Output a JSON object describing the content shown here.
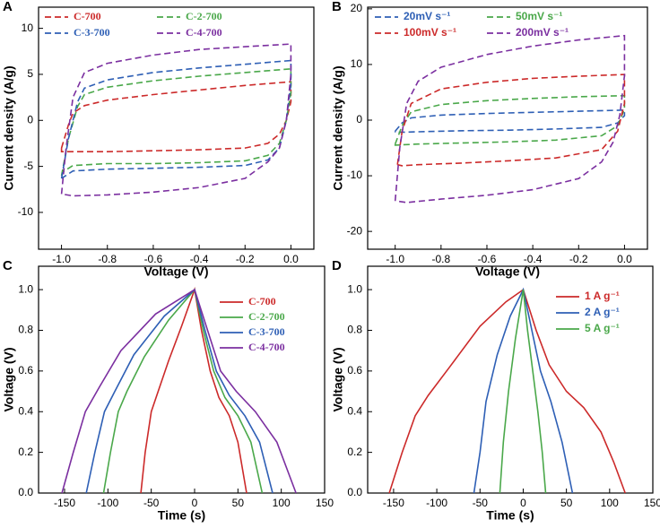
{
  "chart_data": [
    {
      "type": "line",
      "label": "A",
      "xlabel": "Voltage (V)",
      "ylabel": "Current density (A/g)",
      "linestyle": "dashed",
      "xlim": [
        -1.1,
        0.1
      ],
      "ylim": [
        -14,
        12.3
      ],
      "xticks": [
        {
          "value": -1,
          "label": "-1.0"
        },
        -0.8,
        -0.6,
        -0.4,
        -0.2,
        {
          "value": 0,
          "label": "0.0"
        }
      ],
      "yticks": [
        -10,
        -5,
        0,
        5,
        10
      ],
      "series": [
        {
          "name": "C-700",
          "color": "#cc2a2a",
          "x": [
            -1.0,
            -0.97,
            -0.95,
            -0.9,
            -0.8,
            -0.6,
            -0.4,
            -0.2,
            0.0,
            0.0,
            -0.02,
            -0.05,
            -0.1,
            -0.2,
            -0.4,
            -0.6,
            -0.8,
            -1.0,
            -1.0
          ],
          "values": [
            -3,
            -0.5,
            0.8,
            1.6,
            2.2,
            2.8,
            3.3,
            3.8,
            4.2,
            2,
            0,
            -1.5,
            -2.5,
            -3,
            -3.2,
            -3.3,
            -3.4,
            -3.4,
            -3
          ]
        },
        {
          "name": "C-2-700",
          "color": "#4aa84a",
          "x": [
            -1.0,
            -0.97,
            -0.93,
            -0.9,
            -0.8,
            -0.6,
            -0.4,
            -0.2,
            0.0,
            0.0,
            -0.02,
            -0.05,
            -0.1,
            -0.2,
            -0.4,
            -0.6,
            -0.8,
            -0.95,
            -1.0
          ],
          "values": [
            -6,
            -2,
            1.5,
            2.8,
            3.6,
            4.3,
            4.8,
            5.2,
            5.6,
            3,
            0,
            -2.5,
            -3.8,
            -4.4,
            -4.6,
            -4.7,
            -4.7,
            -4.9,
            -5.7
          ]
        },
        {
          "name": "C-3-700",
          "color": "#2e5fb5",
          "x": [
            -1.0,
            -0.97,
            -0.93,
            -0.9,
            -0.8,
            -0.6,
            -0.4,
            -0.2,
            0.0,
            0.0,
            -0.02,
            -0.05,
            -0.1,
            -0.2,
            -0.4,
            -0.6,
            -0.8,
            -0.95,
            -1.0
          ],
          "values": [
            -6.3,
            -2,
            2,
            3.5,
            4.4,
            5.2,
            5.7,
            6.1,
            6.5,
            4,
            0,
            -3,
            -4.3,
            -4.9,
            -5.1,
            -5.2,
            -5.3,
            -5.5,
            -6.3
          ]
        },
        {
          "name": "C-4-700",
          "color": "#7b2fa0",
          "x": [
            -1.0,
            -0.98,
            -0.95,
            -0.9,
            -0.8,
            -0.6,
            -0.4,
            -0.2,
            0.0,
            0.0,
            -0.02,
            -0.05,
            -0.1,
            -0.2,
            -0.4,
            -0.6,
            -0.8,
            -0.95,
            -1.0
          ],
          "values": [
            -8,
            -3,
            2.5,
            5.2,
            6.2,
            7.1,
            7.7,
            8.0,
            8.3,
            5,
            0,
            -3,
            -4.5,
            -6.3,
            -7.3,
            -7.8,
            -8.1,
            -8.2,
            -8
          ]
        }
      ]
    },
    {
      "type": "line",
      "label": "B",
      "xlabel": "Voltage (V)",
      "ylabel": "Current density (A/g)",
      "linestyle": "dashed",
      "xlim": [
        -1.12,
        0.1
      ],
      "ylim": [
        -23.2,
        20.3
      ],
      "xticks": [
        {
          "value": -1,
          "label": "-1.0"
        },
        -0.8,
        -0.6,
        -0.4,
        -0.2,
        {
          "value": 0,
          "label": "0.0"
        }
      ],
      "yticks": [
        -20,
        -10,
        0,
        10,
        20
      ],
      "series": [
        {
          "name": "20mV s⁻¹",
          "color": "#2e5fb5",
          "x": [
            -1.0,
            -0.97,
            -0.93,
            -0.8,
            -0.6,
            -0.4,
            -0.2,
            0.0,
            0.0,
            -0.03,
            -0.1,
            -0.3,
            -0.5,
            -0.7,
            -0.9,
            -1.0,
            -1.0
          ],
          "values": [
            -2,
            -0.5,
            0.4,
            0.9,
            1.2,
            1.4,
            1.6,
            1.8,
            0.8,
            -0.5,
            -1.3,
            -1.6,
            -1.8,
            -1.9,
            -2.1,
            -2.2,
            -2
          ]
        },
        {
          "name": "50mV s⁻¹",
          "color": "#4aa84a",
          "x": [
            -1.0,
            -0.97,
            -0.93,
            -0.8,
            -0.6,
            -0.4,
            -0.2,
            0.0,
            0.0,
            -0.03,
            -0.1,
            -0.3,
            -0.5,
            -0.7,
            -0.9,
            -1.0,
            -1.0
          ],
          "values": [
            -4.3,
            -1,
            1.5,
            2.8,
            3.5,
            3.9,
            4.2,
            4.4,
            2,
            -1,
            -2.8,
            -3.6,
            -3.9,
            -4.1,
            -4.3,
            -4.5,
            -4.3
          ]
        },
        {
          "name": "100mV s⁻¹",
          "color": "#cc2a2a",
          "x": [
            -0.99,
            -0.97,
            -0.93,
            -0.8,
            -0.6,
            -0.4,
            -0.2,
            0.0,
            0.0,
            -0.03,
            -0.1,
            -0.3,
            -0.5,
            -0.7,
            -0.9,
            -0.97,
            -0.99
          ],
          "values": [
            -8,
            -2,
            3,
            5.6,
            6.8,
            7.5,
            7.9,
            8.2,
            3,
            -2,
            -5.3,
            -6.8,
            -7.3,
            -7.7,
            -8,
            -8.2,
            -8
          ]
        },
        {
          "name": "200mV s⁻¹",
          "color": "#7b2fa0",
          "x": [
            -1.0,
            -0.98,
            -0.95,
            -0.9,
            -0.8,
            -0.6,
            -0.4,
            -0.2,
            0.0,
            0.0,
            -0.02,
            -0.05,
            -0.1,
            -0.2,
            -0.4,
            -0.6,
            -0.8,
            -0.95,
            -1.0
          ],
          "values": [
            -14.5,
            -5,
            3,
            7,
            9.5,
            11.8,
            13.3,
            14.4,
            15.2,
            8,
            1,
            -4,
            -7.5,
            -10.5,
            -12.5,
            -13.5,
            -14.2,
            -14.8,
            -14.5
          ]
        }
      ]
    },
    {
      "type": "line",
      "label": "C",
      "xlabel": "Time (s)",
      "ylabel": "Voltage (V)",
      "linestyle": "solid",
      "xlim": [
        -180,
        150
      ],
      "ylim": [
        0,
        1.115
      ],
      "xticks": [
        -150,
        -100,
        -50,
        0,
        50,
        100,
        150
      ],
      "yticks": [
        {
          "value": 0,
          "label": "0.0"
        },
        0.2,
        0.4,
        0.6,
        0.8,
        {
          "value": 1,
          "label": "1.0"
        }
      ],
      "series": [
        {
          "name": "C-700",
          "color": "#cc2a2a",
          "x": [
            -62,
            -57,
            -50,
            -42,
            -30,
            -15,
            0,
            8,
            18,
            28,
            40,
            50,
            60
          ],
          "values": [
            0,
            0.2,
            0.4,
            0.5,
            0.65,
            0.82,
            1.0,
            0.8,
            0.6,
            0.47,
            0.38,
            0.25,
            0
          ]
        },
        {
          "name": "C-2-700",
          "color": "#4aa84a",
          "x": [
            -105,
            -97,
            -88,
            -78,
            -58,
            -30,
            0,
            10,
            22,
            35,
            50,
            65,
            78
          ],
          "values": [
            0,
            0.2,
            0.4,
            0.5,
            0.67,
            0.85,
            1.0,
            0.8,
            0.6,
            0.47,
            0.38,
            0.25,
            0
          ]
        },
        {
          "name": "C-3-700",
          "color": "#2e5fb5",
          "x": [
            -125,
            -115,
            -104,
            -92,
            -70,
            -35,
            0,
            12,
            25,
            40,
            58,
            75,
            90
          ],
          "values": [
            0,
            0.2,
            0.4,
            0.5,
            0.68,
            0.87,
            1.0,
            0.8,
            0.6,
            0.48,
            0.38,
            0.25,
            0
          ]
        },
        {
          "name": "C-4-700",
          "color": "#7b2fa0",
          "x": [
            -153,
            -140,
            -126,
            -110,
            -85,
            -45,
            0,
            15,
            30,
            48,
            70,
            95,
            117
          ],
          "values": [
            0,
            0.2,
            0.4,
            0.52,
            0.7,
            0.88,
            1.0,
            0.8,
            0.6,
            0.5,
            0.4,
            0.25,
            0
          ]
        }
      ]
    },
    {
      "type": "line",
      "label": "D",
      "xlabel": "Time (s)",
      "ylabel": "Voltage (V)",
      "linestyle": "solid",
      "xlim": [
        -180,
        150
      ],
      "ylim": [
        0,
        1.115
      ],
      "xticks": [
        -150,
        -100,
        -50,
        0,
        50,
        100,
        150
      ],
      "yticks": [
        {
          "value": 0,
          "label": "0.0"
        },
        0.2,
        0.4,
        0.6,
        0.8,
        {
          "value": 1,
          "label": "1.0"
        }
      ],
      "series": [
        {
          "name": "1 A g⁻¹",
          "color": "#cc2a2a",
          "x": [
            -155,
            -140,
            -125,
            -110,
            -85,
            -50,
            -20,
            0,
            15,
            30,
            50,
            70,
            90,
            105,
            118
          ],
          "values": [
            0,
            0.2,
            0.38,
            0.48,
            0.62,
            0.82,
            0.94,
            1.0,
            0.8,
            0.63,
            0.5,
            0.42,
            0.3,
            0.15,
            0
          ]
        },
        {
          "name": "2 A g⁻¹",
          "color": "#2e5fb5",
          "x": [
            -57,
            -50,
            -43,
            -30,
            -15,
            0,
            10,
            20,
            32,
            45,
            57
          ],
          "values": [
            0,
            0.2,
            0.45,
            0.68,
            0.87,
            1.0,
            0.8,
            0.6,
            0.45,
            0.25,
            0
          ]
        },
        {
          "name": "5 A g⁻¹",
          "color": "#4aa84a",
          "x": [
            -27,
            -23,
            -17,
            -9,
            0,
            5,
            11,
            17,
            22,
            26
          ],
          "values": [
            0,
            0.25,
            0.5,
            0.76,
            1.0,
            0.8,
            0.6,
            0.4,
            0.2,
            0
          ]
        }
      ]
    }
  ]
}
